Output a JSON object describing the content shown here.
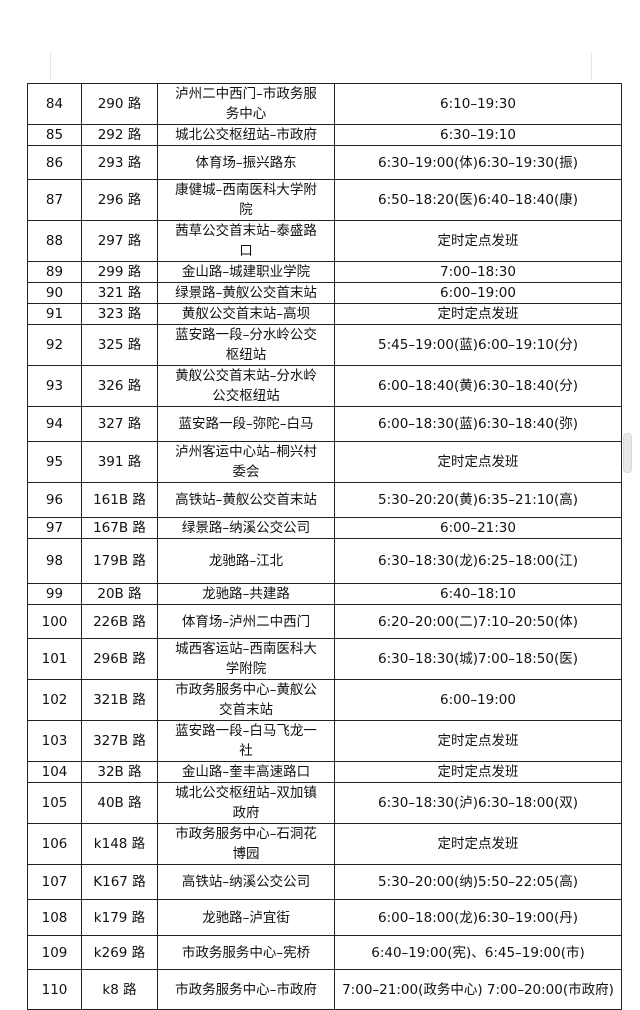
{
  "rows": [
    {
      "no": "84",
      "line": "290 路",
      "route": "泸州二中西门–市政务服务中心",
      "time": "6:10–19:30"
    },
    {
      "no": "85",
      "line": "292 路",
      "route": "城北公交枢纽站–市政府",
      "time": "6:30–19:10"
    },
    {
      "no": "86",
      "line": "293 路",
      "route": "体育场–振兴路东",
      "time": "6:30–19:00(体)6:30–19:30(振)"
    },
    {
      "no": "87",
      "line": "296 路",
      "route": "康健城–西南医科大学附院",
      "time": "6:50–18:20(医)6:40–18:40(康)"
    },
    {
      "no": "88",
      "line": "297 路",
      "route": "茜草公交首末站–泰盛路口",
      "time": "定时定点发班"
    },
    {
      "no": "89",
      "line": "299 路",
      "route": "金山路–城建职业学院",
      "time": "7:00–18:30"
    },
    {
      "no": "90",
      "line": "321 路",
      "route": "绿景路–黄舣公交首末站",
      "time": "6:00–19:00"
    },
    {
      "no": "91",
      "line": "323 路",
      "route": "黄舣公交首末站–高坝",
      "time": "定时定点发班"
    },
    {
      "no": "92",
      "line": "325 路",
      "route": "蓝安路一段–分水岭公交枢纽站",
      "time": "5:45–19:00(蓝)6:00–19:10(分)"
    },
    {
      "no": "93",
      "line": "326 路",
      "route": "黄舣公交首末站–分水岭公交枢纽站",
      "time": "6:00–18:40(黄)6:30–18:40(分)"
    },
    {
      "no": "94",
      "line": "327 路",
      "route": "蓝安路一段–弥陀–白马",
      "time": "6:00–18:30(蓝)6:30–18:40(弥)"
    },
    {
      "no": "95",
      "line": "391 路",
      "route": "泸州客运中心站–桐兴村委会",
      "time": "定时定点发班"
    },
    {
      "no": "96",
      "line": "161B 路",
      "route": "高铁站–黄舣公交首末站",
      "time": "5:30–20:20(黄)6:35–21:10(高)"
    },
    {
      "no": "97",
      "line": "167B 路",
      "route": "绿景路–纳溪公交公司",
      "time": "6:00–21:30"
    },
    {
      "no": "98",
      "line": "179B 路",
      "route": "龙驰路–江北",
      "time": "6:30–18:30(龙)6:25–18:00(江)"
    },
    {
      "no": "99",
      "line": "20B 路",
      "route": "龙驰路–共建路",
      "time": "6:40–18:10"
    },
    {
      "no": "100",
      "line": "226B 路",
      "route": "体育场–泸州二中西门",
      "time": "6:20–20:00(二)7:10–20:50(体)"
    },
    {
      "no": "101",
      "line": "296B 路",
      "route": "城西客运站–西南医科大学附院",
      "time": "6:30–18:30(城)7:00–18:50(医)"
    },
    {
      "no": "102",
      "line": "321B 路",
      "route": "市政务服务中心–黄舣公交首末站",
      "time": "6:00–19:00"
    },
    {
      "no": "103",
      "line": "327B 路",
      "route": "蓝安路一段–白马飞龙一社",
      "time": "定时定点发班"
    },
    {
      "no": "104",
      "line": "32B 路",
      "route": "金山路–奎丰高速路口",
      "time": "定时定点发班"
    },
    {
      "no": "105",
      "line": "40B 路",
      "route": "城北公交枢纽站–双加镇政府",
      "time": "6:30–18:30(泸)6:30–18:00(双)"
    },
    {
      "no": "106",
      "line": "k148 路",
      "route": "市政务服务中心–石洞花博园",
      "time": "定时定点发班"
    },
    {
      "no": "107",
      "line": "K167 路",
      "route": "高铁站–纳溪公交公司",
      "time": "5:30–20:00(纳)5:50–22:05(高)"
    },
    {
      "no": "108",
      "line": "k179 路",
      "route": "龙驰路–泸宜街",
      "time": "6:00–18:00(龙)6:30–19:00(丹)"
    },
    {
      "no": "109",
      "line": "k269 路",
      "route": "市政务服务中心–宪桥",
      "time": "6:40–19:00(宪)、6:45–19:00(市)"
    },
    {
      "no": "110",
      "line": "k8 路",
      "route": "市政务服务中心–市政府",
      "time": "7:00–21:00(政务中心) 7:00–20:00(市政府)"
    }
  ]
}
